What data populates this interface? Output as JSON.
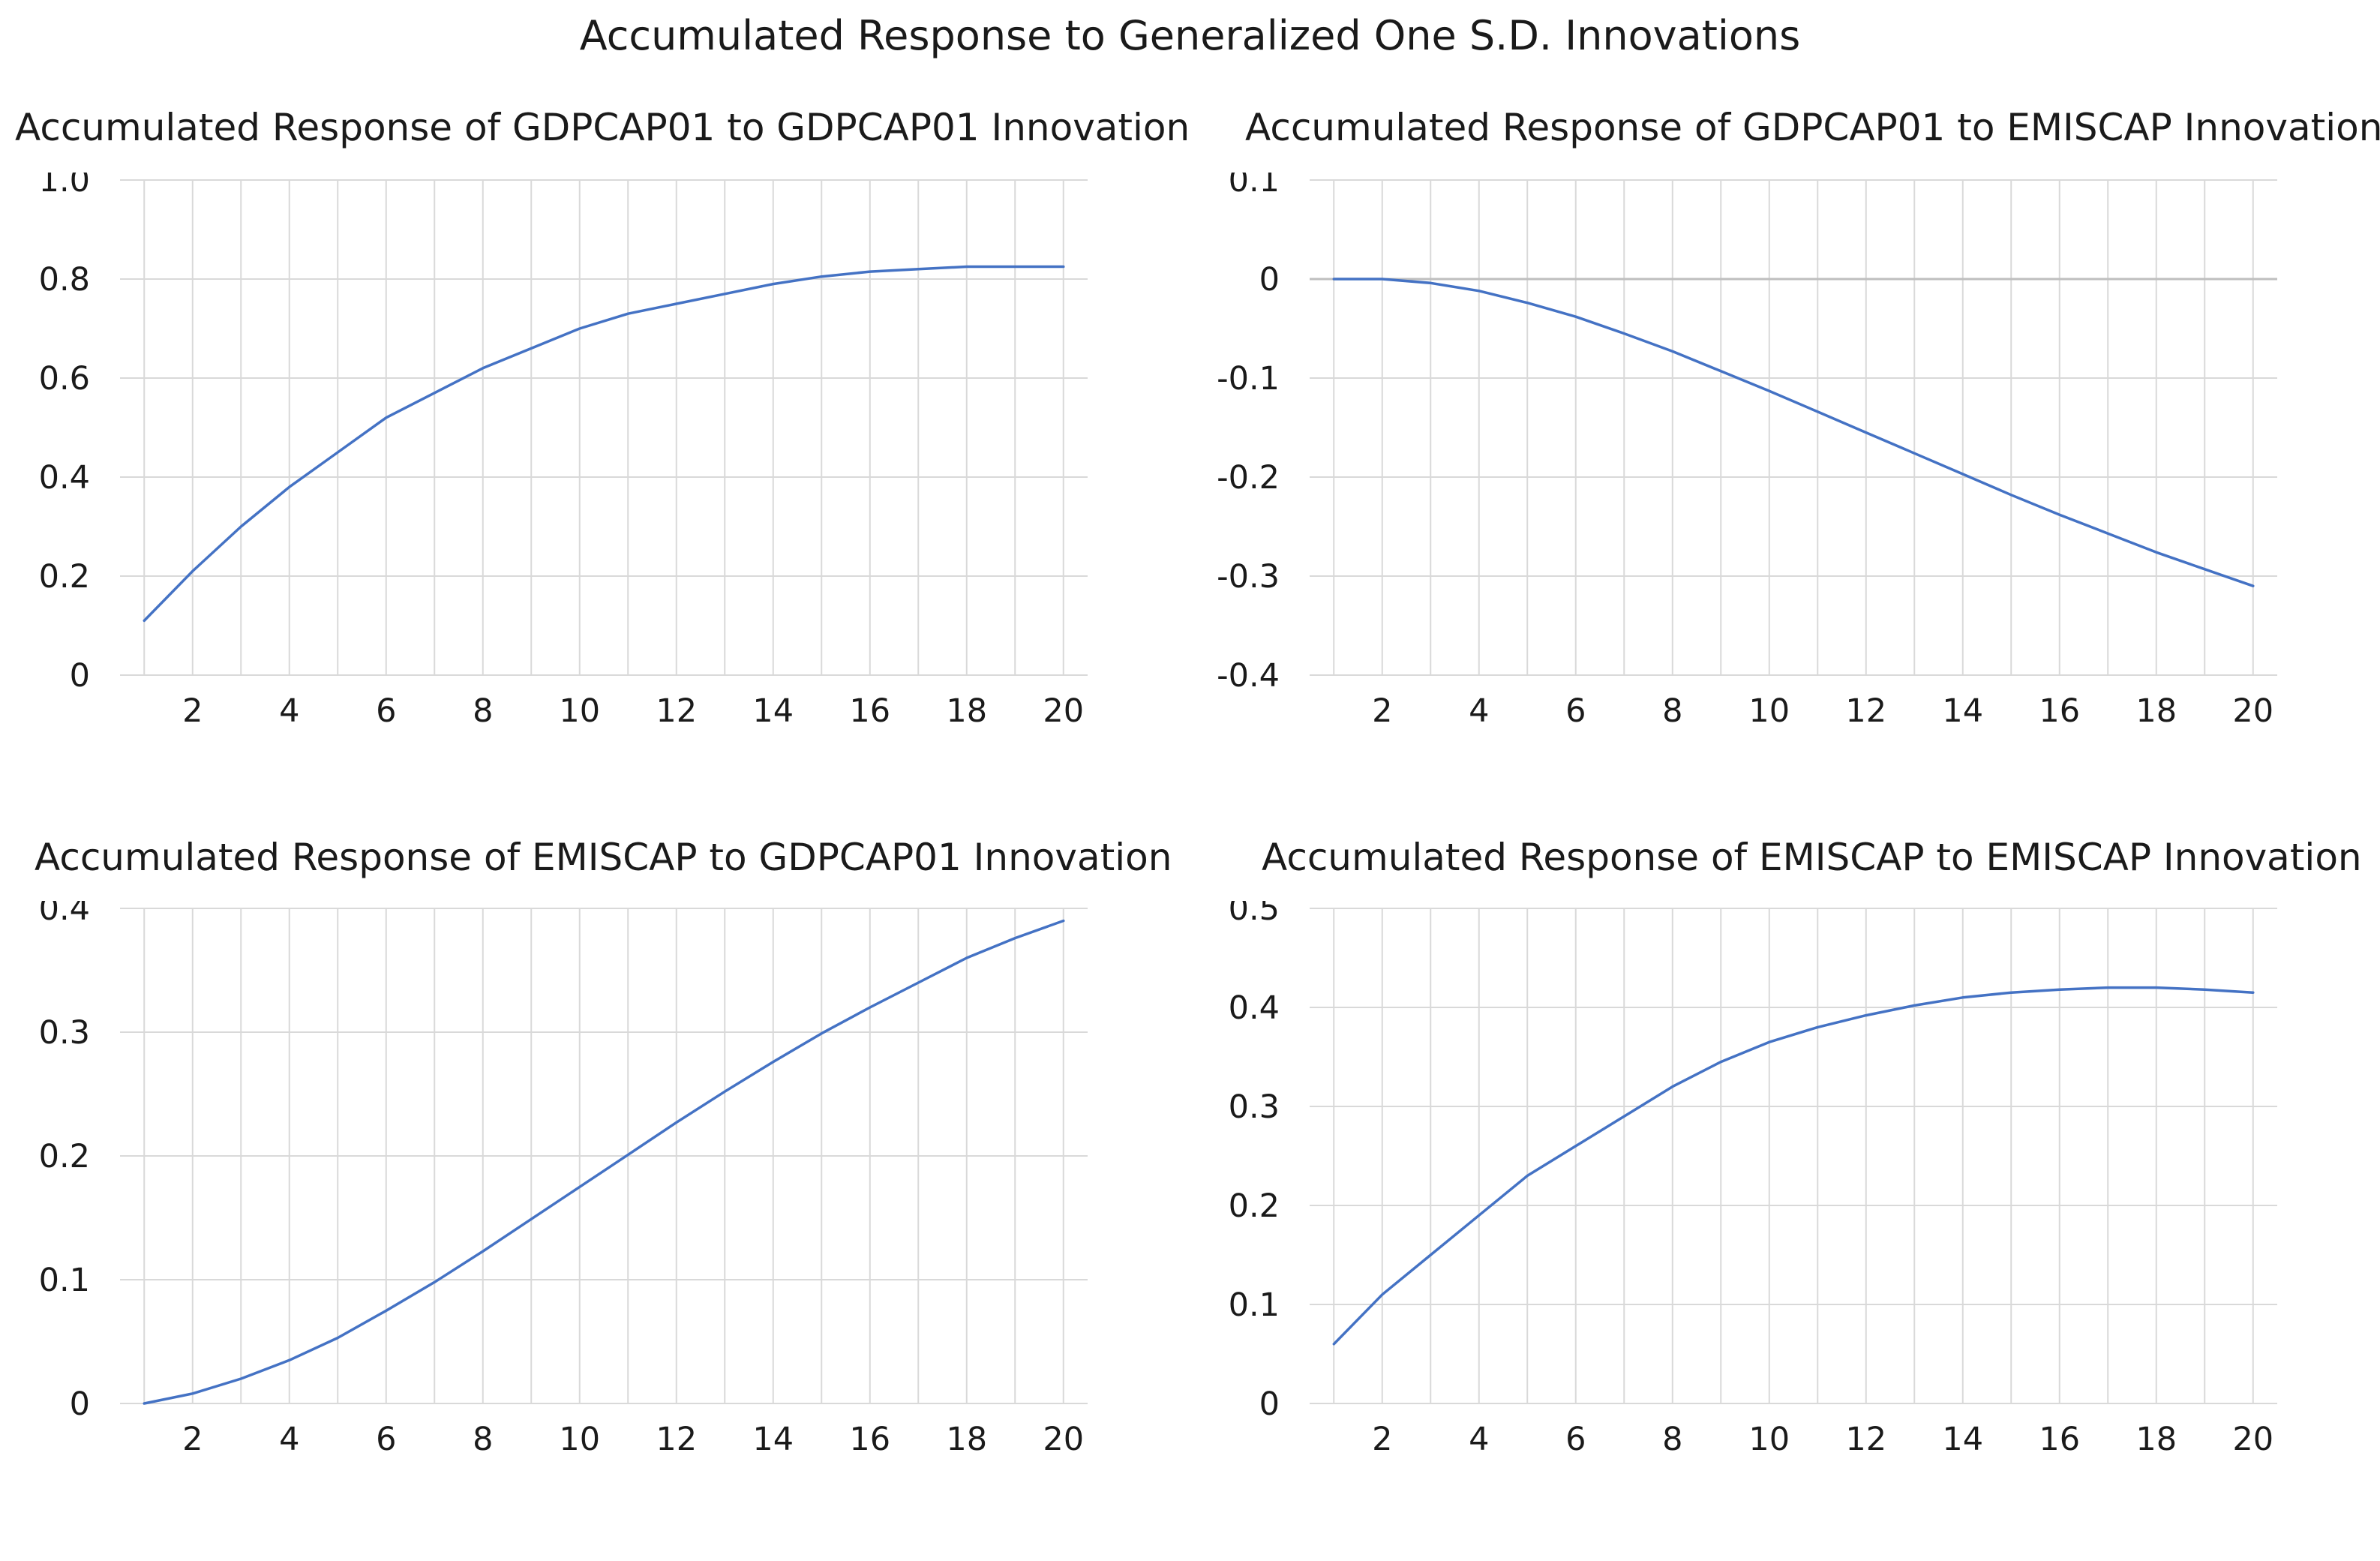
{
  "figure_title": "Accumulated Response to Generalized One S.D. Innovations",
  "colors": {
    "line": "#4472c4",
    "grid": "#d9d9d9",
    "zero_line": "#bfbfbf",
    "text": "#1a1a1a"
  },
  "chart_data": [
    {
      "type": "line",
      "title": "Accumulated Response of GDPCAP01 to GDPCAP01 Innovation",
      "xlabel": "",
      "ylabel": "",
      "x": [
        1,
        2,
        3,
        4,
        5,
        6,
        7,
        8,
        9,
        10,
        11,
        12,
        13,
        14,
        15,
        16,
        17,
        18,
        19,
        20
      ],
      "xticks": [
        "2",
        "4",
        "6",
        "8",
        "10",
        "12",
        "14",
        "16",
        "18",
        "20"
      ],
      "ylim": [
        0,
        1.0
      ],
      "yticks": [
        "1.0",
        "0.8",
        "0.6",
        "0.4",
        "0.2",
        "0"
      ],
      "zero_line": false,
      "grid": true,
      "series": [
        {
          "name": "Accumulated Response",
          "values": [
            0.11,
            0.21,
            0.3,
            0.38,
            0.45,
            0.52,
            0.57,
            0.62,
            0.66,
            0.7,
            0.73,
            0.75,
            0.77,
            0.79,
            0.805,
            0.815,
            0.82,
            0.825,
            0.825,
            0.825
          ]
        }
      ]
    },
    {
      "type": "line",
      "title": "Accumulated Response of GDPCAP01 to EMISCAP Innovation",
      "xlabel": "",
      "ylabel": "",
      "x": [
        1,
        2,
        3,
        4,
        5,
        6,
        7,
        8,
        9,
        10,
        11,
        12,
        13,
        14,
        15,
        16,
        17,
        18,
        19,
        20
      ],
      "xticks": [
        "2",
        "4",
        "6",
        "8",
        "10",
        "12",
        "14",
        "16",
        "18",
        "20"
      ],
      "ylim": [
        -0.4,
        0.1
      ],
      "yticks": [
        "0.1",
        "0",
        "-0.1",
        "-0.2",
        "-0.3",
        "-0.4"
      ],
      "zero_line": true,
      "grid": true,
      "series": [
        {
          "name": "Accumulated Response",
          "values": [
            0.0,
            0.0,
            -0.004,
            -0.012,
            -0.024,
            -0.038,
            -0.055,
            -0.073,
            -0.093,
            -0.113,
            -0.134,
            -0.155,
            -0.176,
            -0.197,
            -0.218,
            -0.238,
            -0.257,
            -0.276,
            -0.293,
            -0.31
          ]
        }
      ]
    },
    {
      "type": "line",
      "title": "Accumulated Response of EMISCAP to GDPCAP01 Innovation",
      "xlabel": "",
      "ylabel": "",
      "x": [
        1,
        2,
        3,
        4,
        5,
        6,
        7,
        8,
        9,
        10,
        11,
        12,
        13,
        14,
        15,
        16,
        17,
        18,
        19,
        20
      ],
      "xticks": [
        "2",
        "4",
        "6",
        "8",
        "10",
        "12",
        "14",
        "16",
        "18",
        "20"
      ],
      "ylim": [
        0,
        0.4
      ],
      "yticks": [
        "0.4",
        "0.3",
        "0.2",
        "0.1",
        "0"
      ],
      "zero_line": false,
      "grid": true,
      "series": [
        {
          "name": "Accumulated Response",
          "values": [
            0.0,
            0.008,
            0.02,
            0.035,
            0.053,
            0.075,
            0.098,
            0.123,
            0.149,
            0.175,
            0.201,
            0.227,
            0.252,
            0.276,
            0.299,
            0.32,
            0.34,
            0.36,
            0.376,
            0.39
          ]
        }
      ]
    },
    {
      "type": "line",
      "title": "Accumulated Response of EMISCAP to EMISCAP Innovation",
      "xlabel": "",
      "ylabel": "",
      "x": [
        1,
        2,
        3,
        4,
        5,
        6,
        7,
        8,
        9,
        10,
        11,
        12,
        13,
        14,
        15,
        16,
        17,
        18,
        19,
        20
      ],
      "xticks": [
        "2",
        "4",
        "6",
        "8",
        "10",
        "12",
        "14",
        "16",
        "18",
        "20"
      ],
      "ylim": [
        0,
        0.5
      ],
      "yticks": [
        "0.5",
        "0.4",
        "0.3",
        "0.2",
        "0.1",
        "0"
      ],
      "zero_line": false,
      "grid": true,
      "series": [
        {
          "name": "Accumulated Response",
          "values": [
            0.06,
            0.11,
            0.15,
            0.19,
            0.23,
            0.26,
            0.29,
            0.32,
            0.345,
            0.365,
            0.38,
            0.392,
            0.402,
            0.41,
            0.415,
            0.418,
            0.42,
            0.42,
            0.418,
            0.415
          ]
        }
      ]
    }
  ]
}
